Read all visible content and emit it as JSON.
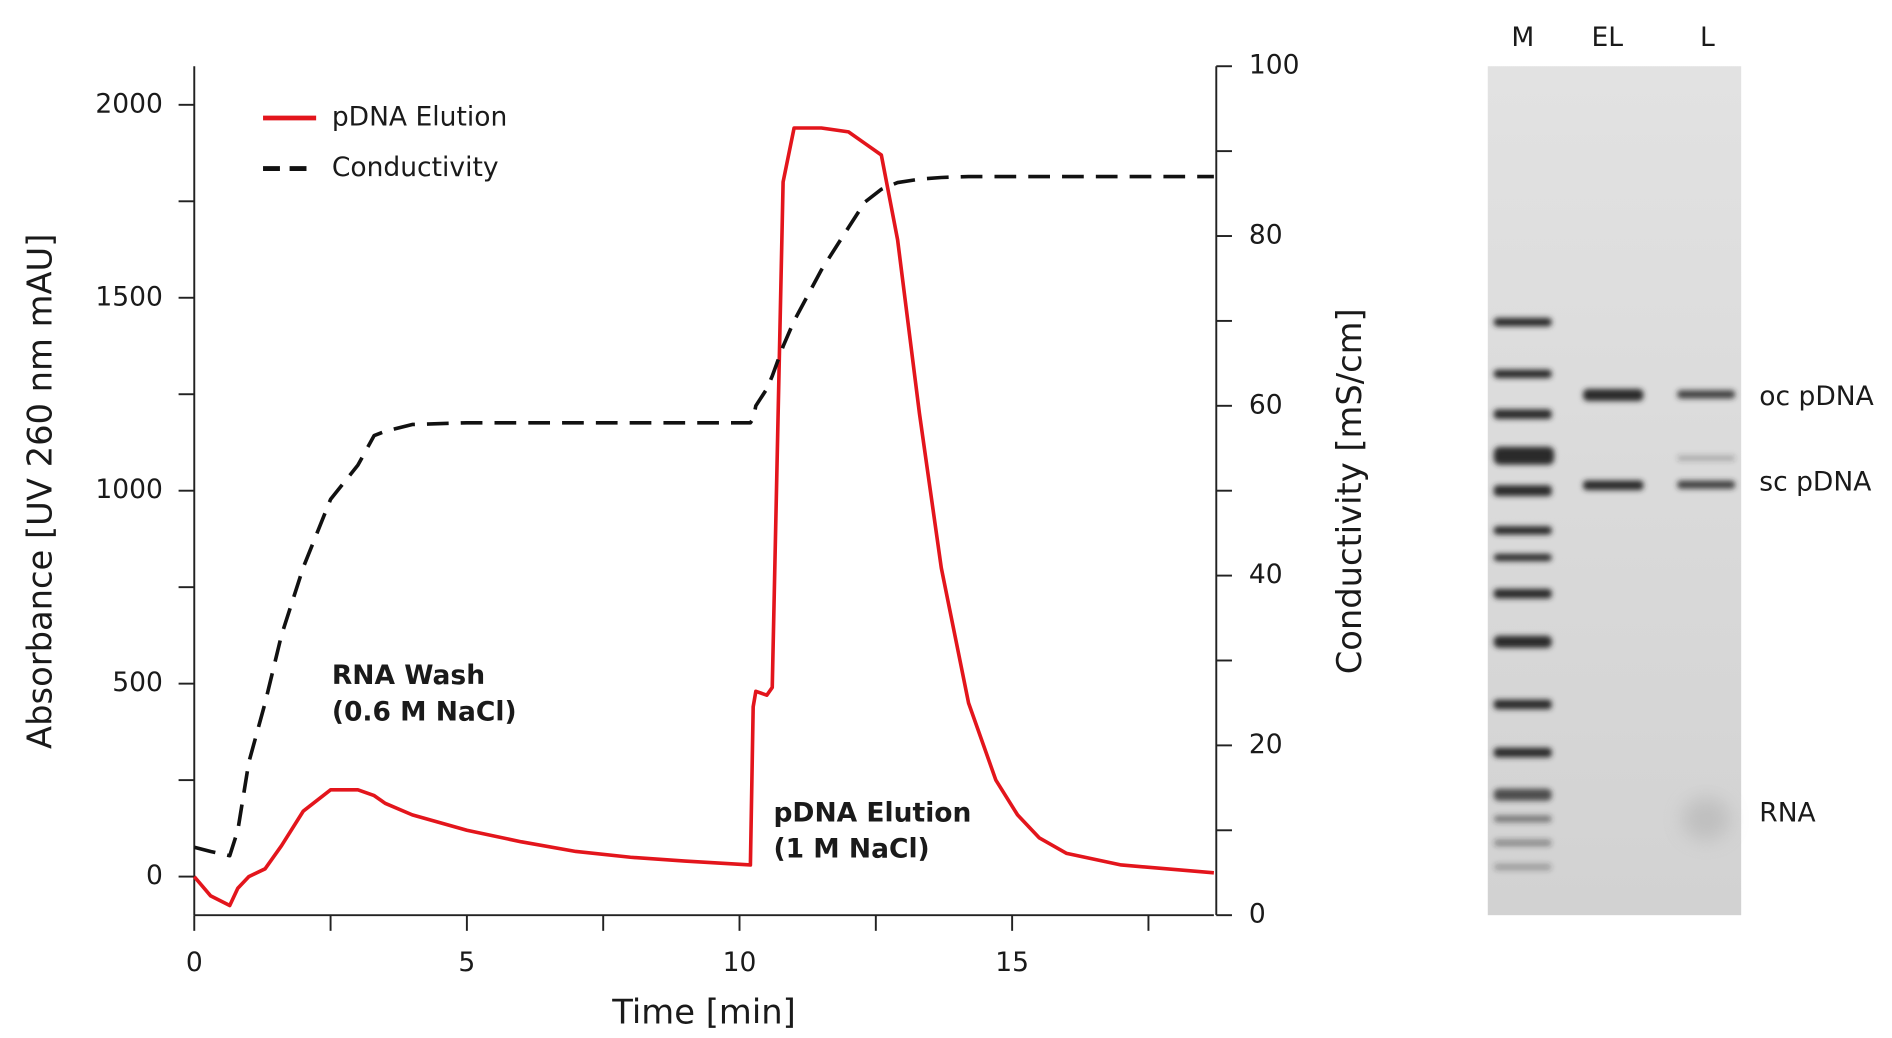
{
  "chart_data": {
    "type": "line",
    "x_label": "Time [min]",
    "y_label": "Absorbance [UV 260 nm mAU]",
    "y2_label": "Conductivity [mS/cm]",
    "x": [
      0,
      0.3,
      0.65,
      0.8,
      1.0,
      1.3,
      1.6,
      2.0,
      2.5,
      3.0,
      3.3,
      3.5,
      4,
      5,
      6,
      7,
      8,
      9,
      10.2,
      10.25,
      10.3,
      10.5,
      10.6,
      10.8,
      11.0,
      11.5,
      12.0,
      12.3,
      12.6,
      12.9,
      13.3,
      13.7,
      14.2,
      14.7,
      15.1,
      15.5,
      16,
      17,
      18.7
    ],
    "series": [
      {
        "name": "pDNA Elution",
        "color": "#e3151c",
        "axis": "y",
        "dash": false,
        "values": [
          0,
          -50,
          -75,
          -30,
          0,
          20,
          80,
          170,
          225,
          225,
          210,
          190,
          160,
          120,
          90,
          65,
          50,
          40,
          30,
          440,
          480,
          470,
          490,
          1800,
          1940,
          1940,
          1930,
          1900,
          1870,
          1650,
          1200,
          800,
          450,
          250,
          160,
          100,
          60,
          30,
          10
        ]
      },
      {
        "name": "Conductivity",
        "color": "#111111",
        "axis": "y2",
        "dash": true,
        "values": [
          8,
          7.5,
          7,
          10,
          18,
          25,
          33,
          41,
          49,
          53,
          56.5,
          57,
          57.8,
          58,
          58,
          58,
          58,
          58,
          58,
          58.5,
          60,
          62,
          63.5,
          67,
          70,
          76,
          81,
          84,
          85.5,
          86.3,
          86.7,
          86.9,
          87,
          87,
          87,
          87,
          87,
          87,
          87
        ]
      }
    ],
    "xlim": [
      0,
      18.7
    ],
    "xticks": [
      0,
      5,
      10,
      15
    ],
    "xminor_ticks": [
      2.5,
      7.5,
      12.5,
      17.5
    ],
    "ylim": [
      -100,
      2100
    ],
    "yticks": [
      0,
      500,
      1000,
      1500,
      2000
    ],
    "yminor_ticks": [
      250,
      750,
      1250,
      1750
    ],
    "y2lim": [
      0,
      100
    ],
    "y2ticks": [
      0,
      20,
      40,
      60,
      80,
      100
    ],
    "y2minor_ticks": [
      10,
      30,
      50,
      70,
      90
    ],
    "legend": "upper left",
    "annotations": [
      {
        "lines": [
          "RNA Wash",
          "(0.6 M NaCl)"
        ]
      },
      {
        "lines": [
          "pDNA Elution",
          "(1 M NaCl)"
        ]
      }
    ]
  },
  "gel": {
    "lanes": [
      "M",
      "EL",
      "L"
    ],
    "band_labels": [
      "oc pDNA",
      "sc pDNA",
      "RNA"
    ]
  }
}
